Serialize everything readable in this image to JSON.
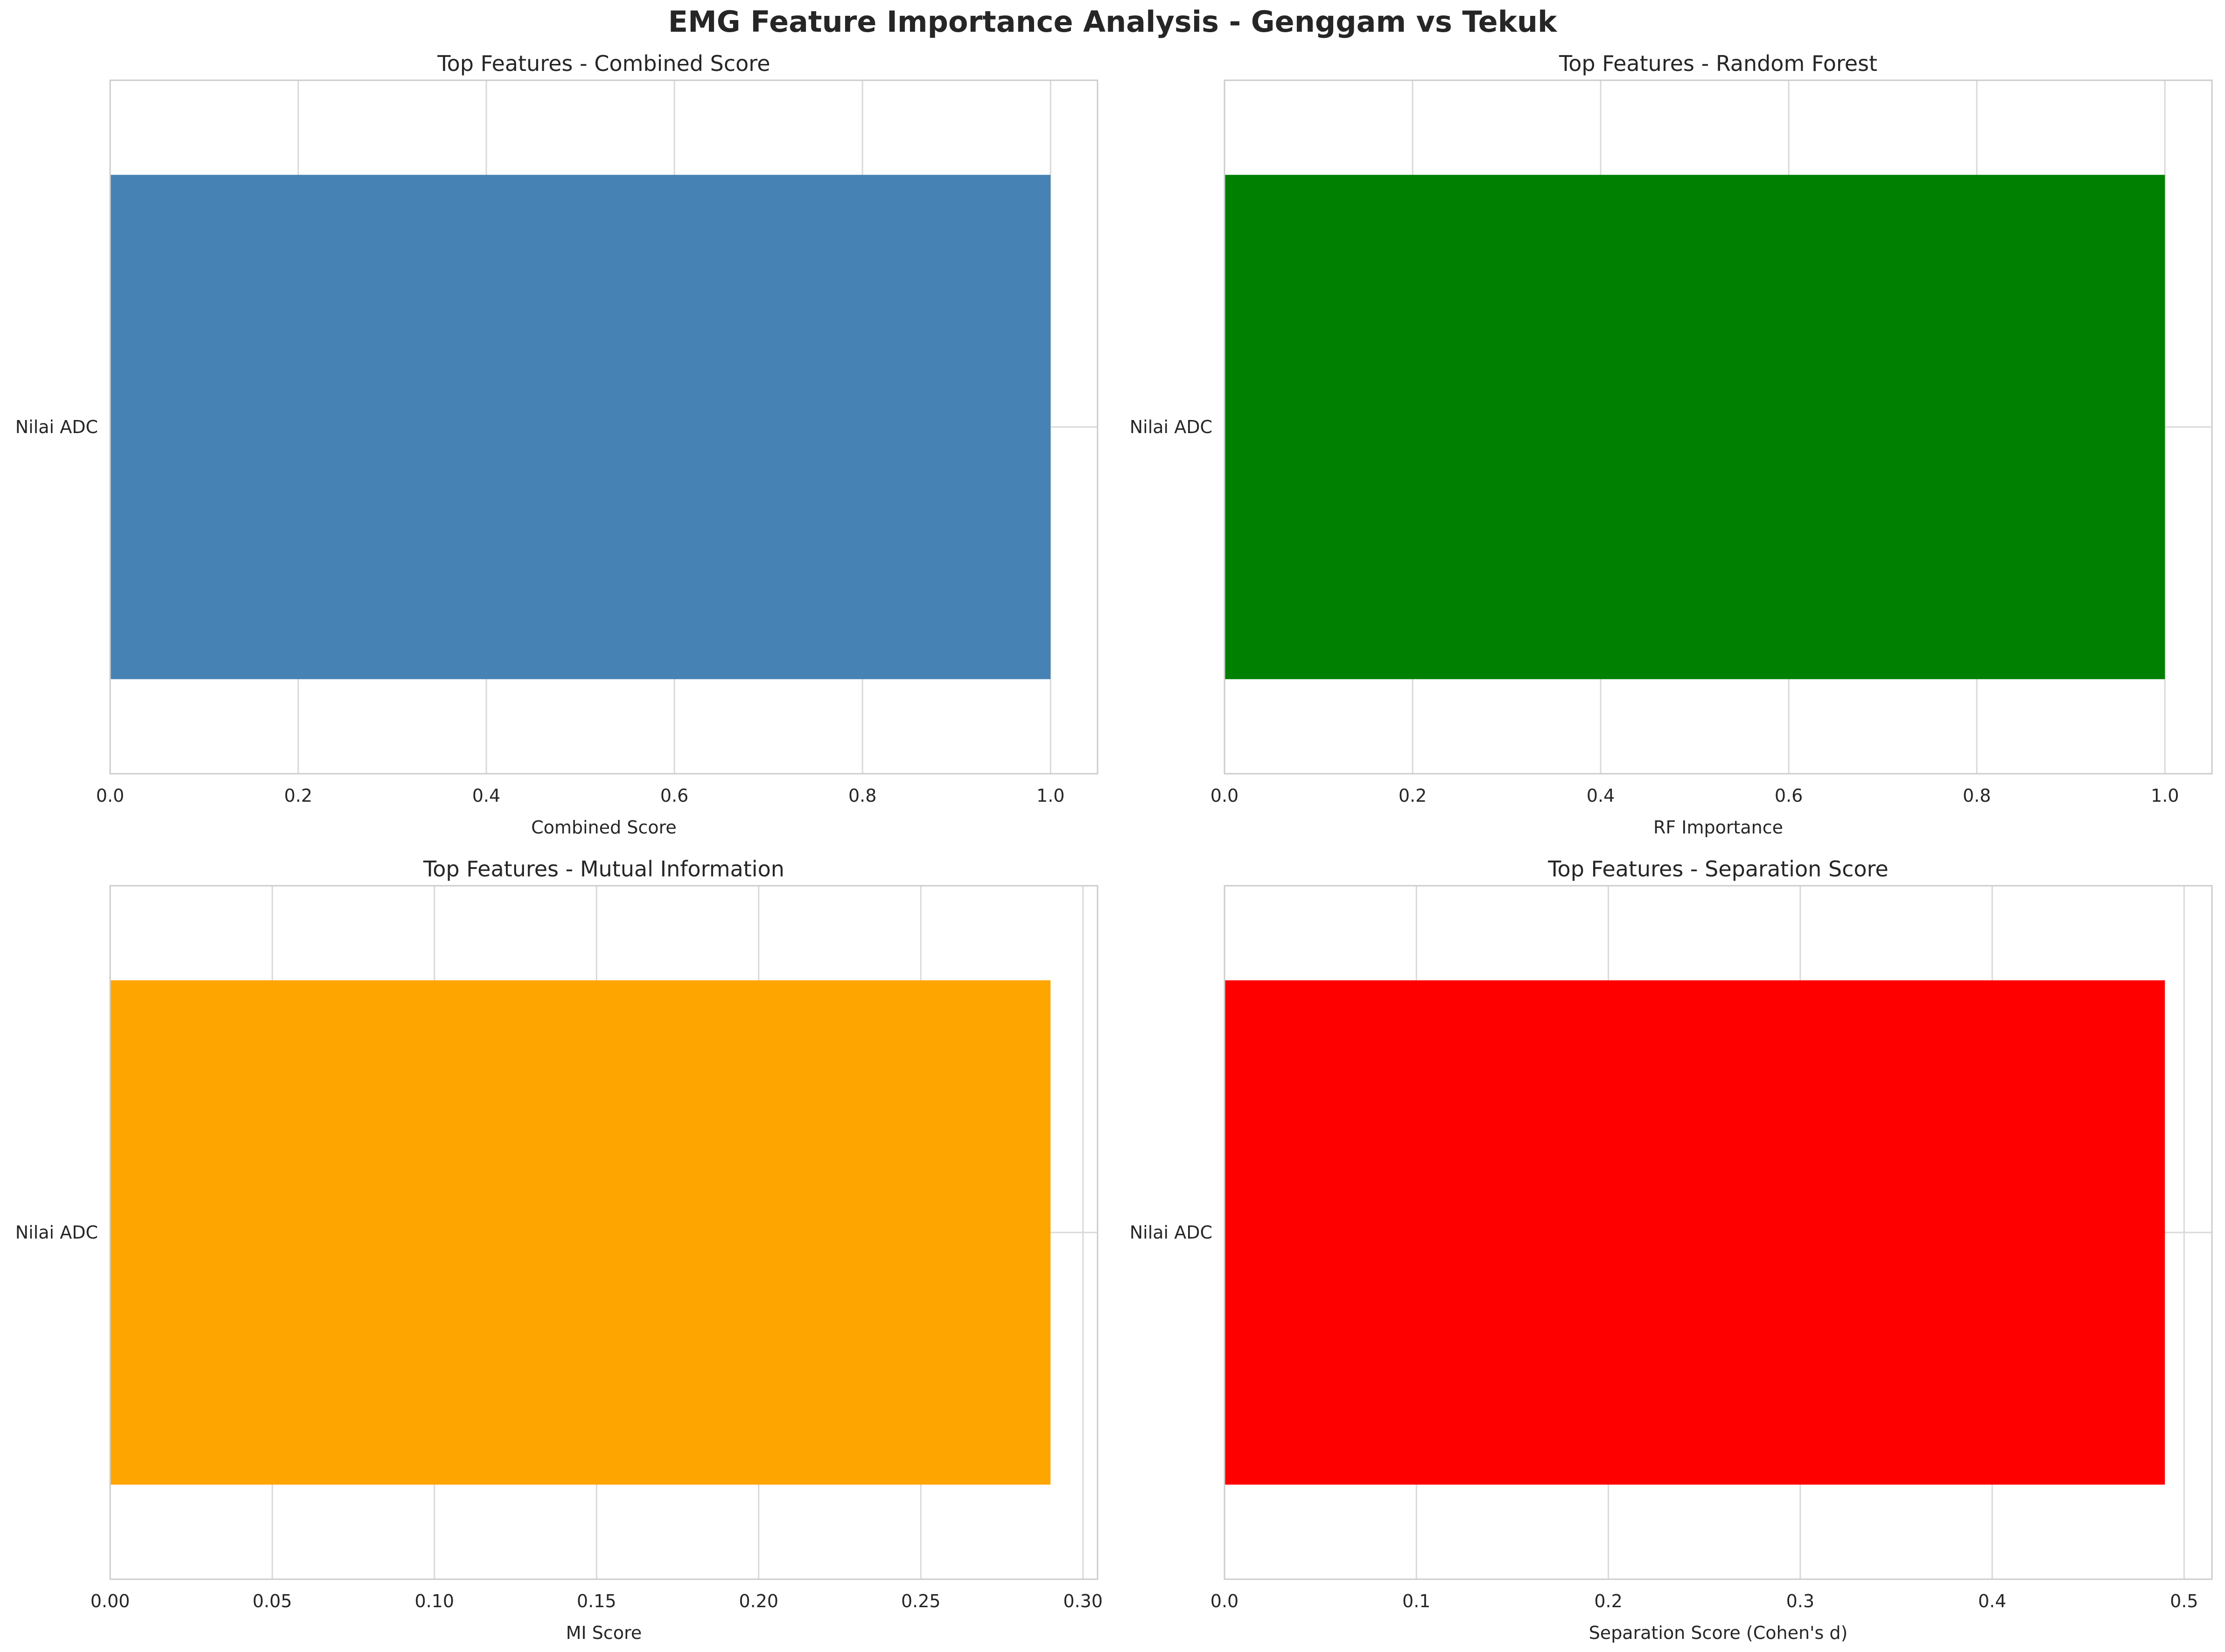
{
  "figure_title": "EMG Feature Importance Analysis - Genggam vs Tekuk",
  "chart_data": [
    {
      "type": "bar",
      "orientation": "horizontal",
      "title": "Top Features - Combined Score",
      "xlabel": "Combined Score",
      "ylabel": "",
      "categories": [
        "Nilai ADC"
      ],
      "values": [
        1.0
      ],
      "xlim": [
        0,
        1.05
      ],
      "xticks": [
        0.0,
        0.2,
        0.4,
        0.6,
        0.8,
        1.0
      ],
      "xtick_labels": [
        "0.0",
        "0.2",
        "0.4",
        "0.6",
        "0.8",
        "1.0"
      ],
      "color": "#4682b4",
      "grid": true
    },
    {
      "type": "bar",
      "orientation": "horizontal",
      "title": "Top Features - Random Forest",
      "xlabel": "RF Importance",
      "ylabel": "",
      "categories": [
        "Nilai ADC"
      ],
      "values": [
        1.0
      ],
      "xlim": [
        0,
        1.05
      ],
      "xticks": [
        0.0,
        0.2,
        0.4,
        0.6,
        0.8,
        1.0
      ],
      "xtick_labels": [
        "0.0",
        "0.2",
        "0.4",
        "0.6",
        "0.8",
        "1.0"
      ],
      "color": "#008000",
      "grid": true
    },
    {
      "type": "bar",
      "orientation": "horizontal",
      "title": "Top Features - Mutual Information",
      "xlabel": "MI Score",
      "ylabel": "",
      "categories": [
        "Nilai ADC"
      ],
      "values": [
        0.29
      ],
      "xlim": [
        0,
        0.3045
      ],
      "xticks": [
        0.0,
        0.05,
        0.1,
        0.15,
        0.2,
        0.25,
        0.3
      ],
      "xtick_labels": [
        "0.00",
        "0.05",
        "0.10",
        "0.15",
        "0.20",
        "0.25",
        "0.30"
      ],
      "color": "#ffa500",
      "grid": true
    },
    {
      "type": "bar",
      "orientation": "horizontal",
      "title": "Top Features - Separation Score",
      "xlabel": "Separation Score (Cohen's d)",
      "ylabel": "",
      "categories": [
        "Nilai ADC"
      ],
      "values": [
        0.49
      ],
      "xlim": [
        0,
        0.5145
      ],
      "xticks": [
        0.0,
        0.1,
        0.2,
        0.3,
        0.4,
        0.5
      ],
      "xtick_labels": [
        "0.0",
        "0.1",
        "0.2",
        "0.3",
        "0.4",
        "0.5"
      ],
      "color": "#ff0000",
      "grid": true
    }
  ]
}
